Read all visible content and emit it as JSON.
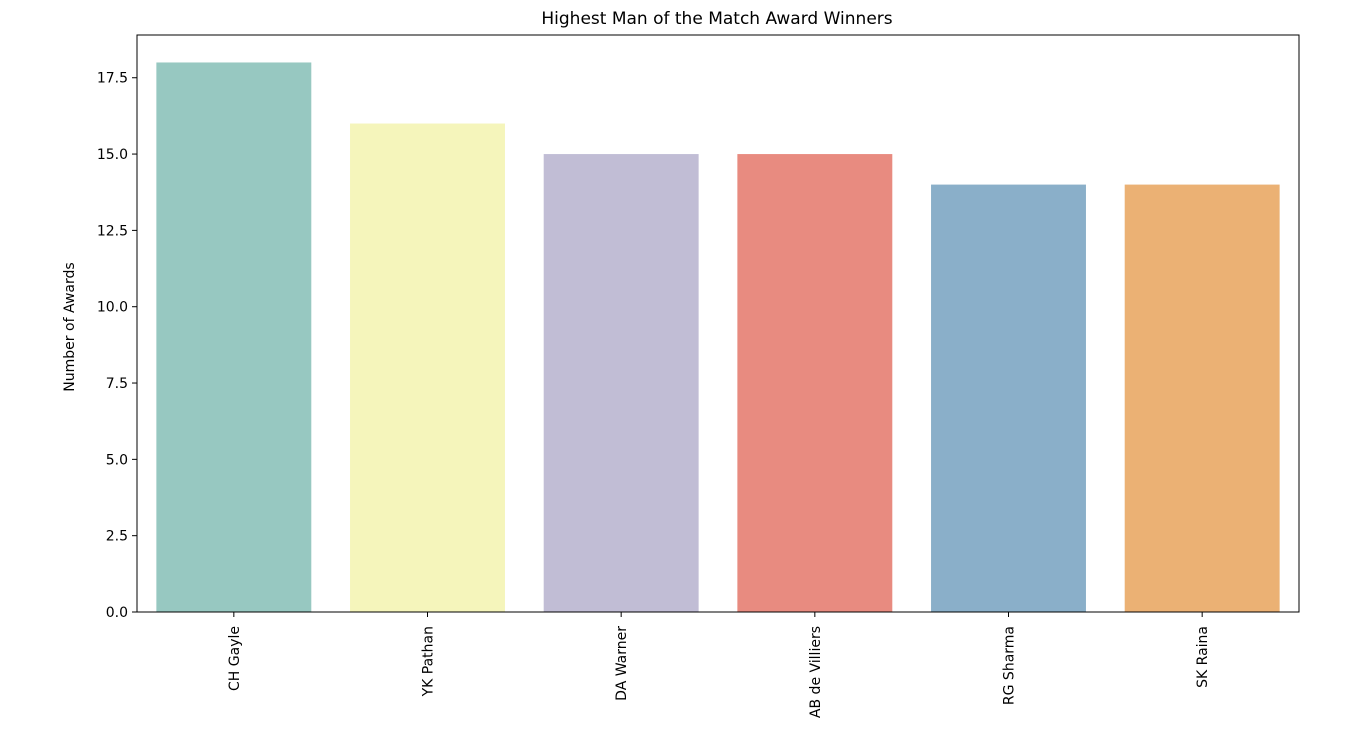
{
  "chart_data": {
    "type": "bar",
    "title": "Highest Man of the Match Award Winners",
    "xlabel": "",
    "ylabel": "Number of Awards",
    "categories": [
      "CH Gayle",
      "YK Pathan",
      "DA Warner",
      "AB de Villiers",
      "RG Sharma",
      "SK Raina"
    ],
    "values": [
      18,
      16,
      15,
      15,
      14,
      14
    ],
    "colors": [
      "#97c8c1",
      "#f5f5bb",
      "#c1bdd5",
      "#e88b80",
      "#8aafc9",
      "#ebb174"
    ],
    "ylim": [
      0,
      18.9
    ],
    "yticks": [
      0,
      2.5,
      5,
      7.5,
      10,
      12.5,
      15,
      17.5
    ],
    "ytick_labels": [
      "0.0",
      "2.5",
      "5.0",
      "7.5",
      "10.0",
      "12.5",
      "15.0",
      "17.5"
    ],
    "grid": false,
    "legend": "none"
  }
}
